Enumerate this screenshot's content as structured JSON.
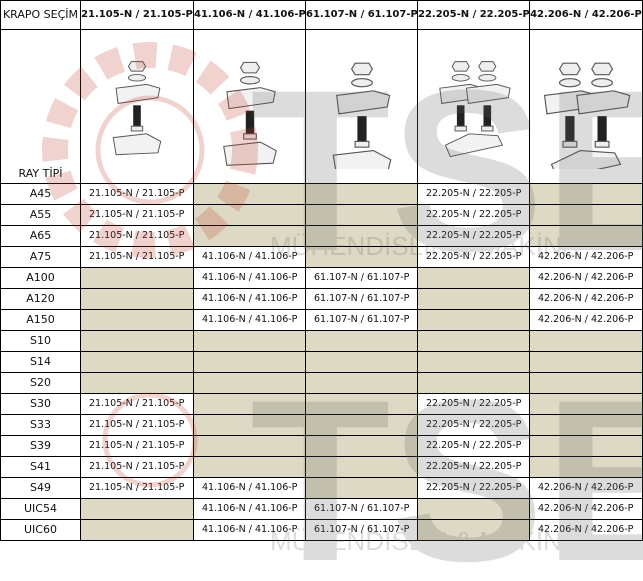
{
  "corner_top": "KRAPO SEÇİM",
  "corner_bottom": "RAY TİPİ",
  "columns": [
    "21.105-N / 21.105-P",
    "41.106-N / 41.106-P",
    "61.107-N / 61.107-P",
    "22.205-N / 22.205-P",
    "42.206-N / 42.206-P"
  ],
  "column_images": [
    "single-clamp-small",
    "single-clamp-medium",
    "single-clamp-large",
    "double-clamp-small",
    "double-clamp-large"
  ],
  "watermark": {
    "logo_text": "TSE",
    "tagline": "MÜHENDİSLİK & MAKİNA"
  },
  "colors": {
    "empty_cell": "#ddd9c4",
    "border": "#000000"
  },
  "rows": [
    {
      "rail": "A45",
      "cells": [
        "21.105-N / 21.105-P",
        "",
        "",
        "22.205-N / 22.205-P",
        ""
      ]
    },
    {
      "rail": "A55",
      "cells": [
        "21.105-N / 21.105-P",
        "",
        "",
        "22.205-N / 22.205-P",
        ""
      ]
    },
    {
      "rail": "A65",
      "cells": [
        "21.105-N / 21.105-P",
        "",
        "",
        "22.205-N / 22.205-P",
        ""
      ]
    },
    {
      "rail": "A75",
      "cells": [
        "21.105-N / 21.105-P",
        "41.106-N / 41.106-P",
        "",
        "22.205-N / 22.205-P",
        "42.206-N / 42.206-P"
      ]
    },
    {
      "rail": "A100",
      "cells": [
        "",
        "41.106-N / 41.106-P",
        "61.107-N / 61.107-P",
        "",
        "42.206-N / 42.206-P"
      ]
    },
    {
      "rail": "A120",
      "cells": [
        "",
        "41.106-N / 41.106-P",
        "61.107-N / 61.107-P",
        "",
        "42.206-N / 42.206-P"
      ]
    },
    {
      "rail": "A150",
      "cells": [
        "",
        "41.106-N / 41.106-P",
        "61.107-N / 61.107-P",
        "",
        "42.206-N / 42.206-P"
      ]
    },
    {
      "rail": "S10",
      "cells": [
        "",
        "",
        "",
        "",
        ""
      ]
    },
    {
      "rail": "S14",
      "cells": [
        "",
        "",
        "",
        "",
        ""
      ]
    },
    {
      "rail": "S20",
      "cells": [
        "",
        "",
        "",
        "",
        ""
      ]
    },
    {
      "rail": "S30",
      "cells": [
        "21.105-N / 21.105-P",
        "",
        "",
        "22.205-N / 22.205-P",
        ""
      ]
    },
    {
      "rail": "S33",
      "cells": [
        "21.105-N / 21.105-P",
        "",
        "",
        "22.205-N / 22.205-P",
        ""
      ]
    },
    {
      "rail": "S39",
      "cells": [
        "21.105-N / 21.105-P",
        "",
        "",
        "22.205-N / 22.205-P",
        ""
      ]
    },
    {
      "rail": "S41",
      "cells": [
        "21.105-N / 21.105-P",
        "",
        "",
        "22.205-N / 22.205-P",
        ""
      ]
    },
    {
      "rail": "S49",
      "cells": [
        "21.105-N / 21.105-P",
        "41.106-N / 41.106-P",
        "",
        "22.205-N / 22.205-P",
        "42.206-N / 42.206-P"
      ]
    },
    {
      "rail": "UIC54",
      "cells": [
        "",
        "41.106-N / 41.106-P",
        "61.107-N / 61.107-P",
        "",
        "42.206-N / 42.206-P"
      ]
    },
    {
      "rail": "UIC60",
      "cells": [
        "",
        "41.106-N / 41.106-P",
        "61.107-N / 61.107-P",
        "",
        "42.206-N / 42.206-P"
      ]
    }
  ]
}
